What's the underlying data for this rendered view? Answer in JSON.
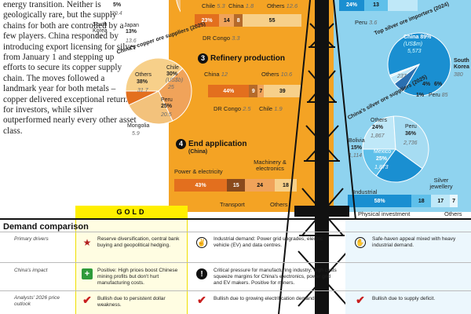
{
  "colors": {
    "orange": "#f4a324",
    "blue": "#8fd3ef",
    "gold": "#ffef00",
    "copper_dark": "#e36f1e",
    "copper_mid": "#f0a35a",
    "copper_light": "#f7d08a",
    "silver_dark": "#1a8fd1",
    "silver_mid": "#5fc0ea",
    "silver_light": "#bfe8f8"
  },
  "intro": "energy transition. Neither is geologically rare, but the supply chains for both are controlled by a few players. China responded by introducing export licensing for silver from January 1 and stepping up efforts to secure its copper supply chain. The moves followed a landmark year for both metals – copper delivered exceptional returns for investors, while silver outperformed nearly every other asset class.",
  "top_pie": {
    "pct": "5%",
    "val": "20.4",
    "us": "(US$b)",
    "chile_val": "67.3",
    "skorea": "South Korea",
    "skorea_val": "5.1",
    "japan": "Japan",
    "japan_pct": "13%",
    "japan_val": "13.6"
  },
  "copper_mining": {
    "labels": {
      "chile": "Chile",
      "chile_val": "5.3",
      "china": "China",
      "china_val": "1.8",
      "others": "Others",
      "others_val": "12.6",
      "drc": "DR Congo",
      "drc_val": "3.3"
    },
    "segments": [
      {
        "label": "23%",
        "value": 23
      },
      {
        "label": "14",
        "value": 14
      },
      {
        "label": "8",
        "value": 8
      },
      {
        "label": "55",
        "value": 55
      }
    ]
  },
  "silver_mining": {
    "label_24": "24%",
    "label_13": "13",
    "peru": "Peru",
    "peru_val": "3.6"
  },
  "section3": {
    "num": "3",
    "title": "Refinery production",
    "china": "China",
    "china_val": "12",
    "others": "Others",
    "others_val": "10.6",
    "drc": "DR Congo",
    "drc_val": "2.5",
    "chile": "Chile",
    "chile_val": "1.9",
    "segments": [
      {
        "label": "44%",
        "value": 44
      },
      {
        "label": "9",
        "value": 9
      },
      {
        "label": "7",
        "value": 7
      },
      {
        "label": "39",
        "value": 39
      }
    ]
  },
  "section4": {
    "num": "4",
    "title": "End application",
    "sub": "(China)",
    "power": "Power & electricity",
    "machinery": "Machinery & electronics",
    "transport": "Transport",
    "others": "Others",
    "segments": [
      {
        "label": "43%",
        "value": 43
      },
      {
        "label": "15",
        "value": 15
      },
      {
        "label": "24",
        "value": 24
      },
      {
        "label": "18",
        "value": 18
      }
    ]
  },
  "copper_suppliers": {
    "title": "China's copper ore suppliers (2025)",
    "others": "Others",
    "others_pct": "38%",
    "others_val": "31.7",
    "chile": "Chile",
    "chile_pct": "30%",
    "chile_us": "(US$b)",
    "chile_val": "25",
    "peru": "Peru",
    "peru_pct": "25%",
    "peru_val": "20.5",
    "mongolia": "Mongolia",
    "mongolia_val": "5.9",
    "slices": [
      {
        "name": "Others",
        "value": 38
      },
      {
        "name": "Chile",
        "value": 30
      },
      {
        "name": "Peru",
        "value": 25
      },
      {
        "name": "Mongolia",
        "value": 7
      }
    ]
  },
  "silver_importers": {
    "title": "Top silver ore importers (2024)",
    "china": "China 89%",
    "china_us": "(US$m)",
    "china_val": "5,573",
    "skorea": "South Korea",
    "skorea_val": "380",
    "others_val": "237",
    "pct6": "6%",
    "pct4": "4%",
    "pct1": "1%",
    "peru": "Peru",
    "peru_val": "85",
    "slices": [
      {
        "name": "China",
        "value": 89
      },
      {
        "name": "South Korea",
        "value": 6
      },
      {
        "name": "Others",
        "value": 4
      },
      {
        "name": "Peru",
        "value": 1
      }
    ]
  },
  "silver_suppliers": {
    "title": "China's silver ore suppliers (2025)",
    "others": "Others",
    "others_pct": "24%",
    "others_val": "1,867",
    "peru": "Peru",
    "peru_pct": "36%",
    "peru_val": "2,736",
    "bolivia": "Bolivia",
    "bolivia_pct": "15%",
    "bolivia_val": "1,114",
    "mexico": "Mexico",
    "mexico_pct": "25%",
    "mexico_val": "1,873",
    "slices": [
      {
        "name": "Others",
        "value": 24
      },
      {
        "name": "Peru",
        "value": 36
      },
      {
        "name": "Mexico",
        "value": 25
      },
      {
        "name": "Bolivia",
        "value": 15
      }
    ]
  },
  "silver_use": {
    "industrial": "Industrial",
    "jewellery": "Silver jewellery",
    "physical": "Physical investment",
    "others": "Others",
    "segments": [
      {
        "label": "58%",
        "value": 58
      },
      {
        "label": "18",
        "value": 18
      },
      {
        "label": "17",
        "value": 17
      },
      {
        "label": "7",
        "value": 7
      }
    ]
  },
  "table": {
    "gold_label": "GOLD",
    "title": "Demand comparison",
    "rows": [
      {
        "label": "Primary drivers",
        "gold": "Reserve diversification, central bank buying and geopolitical hedging.",
        "copper": "Industrial demand: Power grid upgrades, electric vehicle (EV) and data centres.",
        "silver": "Safe-haven appeal mixed with heavy industrial demand."
      },
      {
        "label": "China's impact",
        "gold": "Positive: High prices boost Chinese mining profits but don't hurt manufacturing costs.",
        "copper": "Critical pressure for manufacturing industry: high costs squeeze margins for China's electronics, power grid and EV makers. Positive for miners."
      },
      {
        "label": "Analysts' 2026 price outlook",
        "gold": "Bullish due to persistent dollar weakness.",
        "copper": "Bullish due to growing electrification demand.",
        "silver": "Bullish due to supply deficit."
      }
    ],
    "copper_bold": "Industrial demand:",
    "gold_bold": "Positive:",
    "copper2_bold": "Critical pressure for manufacturing industry:"
  }
}
